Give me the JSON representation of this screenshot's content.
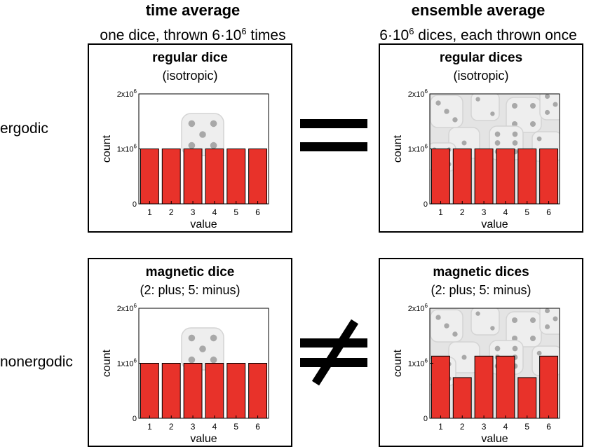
{
  "columns": {
    "left": {
      "title": "time average",
      "subtitle_pre": "one dice, thrown 6·10",
      "subtitle_sup": "6",
      "subtitle_post": " times"
    },
    "right": {
      "title": "ensemble average",
      "subtitle_pre": "6·10",
      "subtitle_sup": "6",
      "subtitle_post": " dices, each thrown once"
    }
  },
  "rows": {
    "top": "ergodic",
    "bottom": "nonergodic"
  },
  "relations": {
    "top": "equals",
    "bottom": "not-equals"
  },
  "chart_data": [
    {
      "type": "bar",
      "title": "regular dice",
      "subtitle": "(isotropic)",
      "categories": [
        "1",
        "2",
        "3",
        "4",
        "5",
        "6"
      ],
      "values": [
        1000000,
        1000000,
        1000000,
        1000000,
        1000000,
        1000000
      ],
      "xlabel": "value",
      "ylabel": "count",
      "ylim": [
        0,
        2000000
      ],
      "ytick_labels": [
        {
          "base": "0",
          "exp": ""
        },
        {
          "base": "1x10",
          "exp": "6"
        },
        {
          "base": "2x10",
          "exp": "6"
        }
      ],
      "bar_color": "#e8322a",
      "background": "single-die"
    },
    {
      "type": "bar",
      "title": "regular dices",
      "subtitle": "(isotropic)",
      "categories": [
        "1",
        "2",
        "3",
        "4",
        "5",
        "6"
      ],
      "values": [
        1000000,
        1000000,
        1000000,
        1000000,
        1000000,
        1000000
      ],
      "xlabel": "value",
      "ylabel": "count",
      "ylim": [
        0,
        2000000
      ],
      "ytick_labels": [
        {
          "base": "0",
          "exp": ""
        },
        {
          "base": "1x10",
          "exp": "6"
        },
        {
          "base": "2x10",
          "exp": "6"
        }
      ],
      "bar_color": "#e8322a",
      "background": "many-dice"
    },
    {
      "type": "bar",
      "title": "magnetic dice",
      "subtitle": "(2: plus; 5: minus)",
      "categories": [
        "1",
        "2",
        "3",
        "4",
        "5",
        "6"
      ],
      "values": [
        1000000,
        1000000,
        1000000,
        1000000,
        1000000,
        1000000
      ],
      "xlabel": "value",
      "ylabel": "count",
      "ylim": [
        0,
        2000000
      ],
      "ytick_labels": [
        {
          "base": "0",
          "exp": ""
        },
        {
          "base": "1x10",
          "exp": "6"
        },
        {
          "base": "2x10",
          "exp": "6"
        }
      ],
      "bar_color": "#e8322a",
      "background": "single-die"
    },
    {
      "type": "bar",
      "title": "magnetic dices",
      "subtitle": "(2: plus; 5: minus)",
      "categories": [
        "1",
        "2",
        "3",
        "4",
        "5",
        "6"
      ],
      "values": [
        1130000,
        740000,
        1130000,
        1130000,
        740000,
        1130000
      ],
      "xlabel": "value",
      "ylabel": "count",
      "ylim": [
        0,
        2000000
      ],
      "ytick_labels": [
        {
          "base": "0",
          "exp": ""
        },
        {
          "base": "1x10",
          "exp": "6"
        },
        {
          "base": "2x10",
          "exp": "6"
        }
      ],
      "bar_color": "#e8322a",
      "background": "many-dice"
    }
  ]
}
